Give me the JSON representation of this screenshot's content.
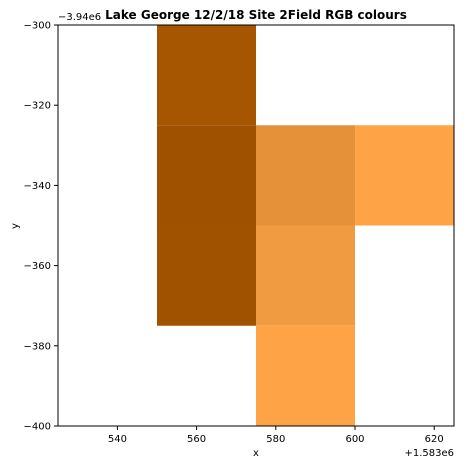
{
  "chart_data": {
    "type": "heatmap",
    "title": "Lake George 12/2/18 Site 2Field RGB colours",
    "xlabel": "x",
    "ylabel": "y",
    "x_offset_label": "+1.583e6",
    "y_offset_label": "−3.94e6",
    "xlim": [
      525,
      625
    ],
    "ylim": [
      -400,
      -300
    ],
    "x_ticks": [
      540,
      560,
      580,
      600,
      620
    ],
    "y_ticks": [
      -300,
      -320,
      -340,
      -360,
      -380,
      -400
    ],
    "x_tick_labels": [
      "540",
      "560",
      "580",
      "600",
      "620"
    ],
    "y_tick_labels": [
      "−300",
      "−320",
      "−340",
      "−360",
      "−380",
      "−400"
    ],
    "cells": [
      {
        "x0": 550,
        "x1": 575,
        "y0": -325,
        "y1": -300,
        "color": "#a65600"
      },
      {
        "x0": 550,
        "x1": 575,
        "y0": -350,
        "y1": -325,
        "color": "#9f5100"
      },
      {
        "x0": 550,
        "x1": 575,
        "y0": -375,
        "y1": -350,
        "color": "#a05200"
      },
      {
        "x0": 575,
        "x1": 600,
        "y0": -350,
        "y1": -325,
        "color": "#e5913a"
      },
      {
        "x0": 600,
        "x1": 625,
        "y0": -350,
        "y1": -325,
        "color": "#ffa446"
      },
      {
        "x0": 575,
        "x1": 600,
        "y0": -375,
        "y1": -350,
        "color": "#f09a42"
      },
      {
        "x0": 575,
        "x1": 600,
        "y0": -400,
        "y1": -375,
        "color": "#ffa446"
      }
    ]
  }
}
